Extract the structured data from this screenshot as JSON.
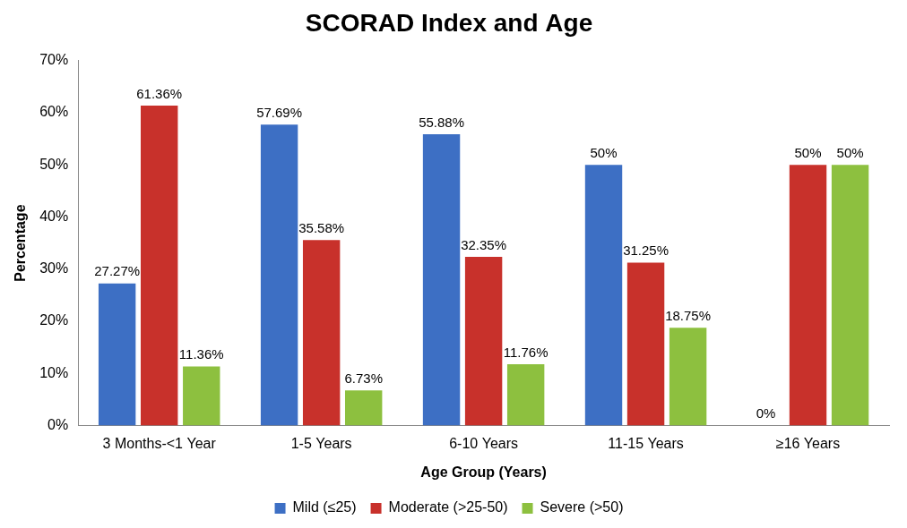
{
  "chart_data": {
    "type": "bar",
    "title": "SCORAD Index and Age",
    "x_label": "Age Group (Years)",
    "y_label": "Percentage",
    "categories": [
      "3 Months-<1 Year",
      "1-5 Years",
      "6-10 Years",
      "11-15 Years",
      "≥16 Years"
    ],
    "series": [
      {
        "name": "Mild (≤25)",
        "color": "#3d6fc4",
        "values": [
          27.27,
          57.69,
          55.88,
          50,
          0
        ],
        "value_labels": [
          "27.27%",
          "57.69%",
          "55.88%",
          "50%",
          "0%"
        ]
      },
      {
        "name": "Moderate (>25-50)",
        "color": "#c8312b",
        "values": [
          61.36,
          35.58,
          32.35,
          31.25,
          50
        ],
        "value_labels": [
          "61.36%",
          "35.58%",
          "32.35%",
          "31.25%",
          "50%"
        ]
      },
      {
        "name": "Severe (>50)",
        "color": "#8dc03f",
        "values": [
          11.36,
          6.73,
          11.76,
          18.75,
          50
        ],
        "value_labels": [
          "11.36%",
          "6.73%",
          "11.76%",
          "18.75%",
          "50%"
        ]
      }
    ],
    "ylim": [
      0,
      70
    ],
    "yticks": [
      {
        "value": 0,
        "label": "0%"
      },
      {
        "value": 10,
        "label": "10%"
      },
      {
        "value": 20,
        "label": "20%"
      },
      {
        "value": 30,
        "label": "30%"
      },
      {
        "value": 40,
        "label": "40%"
      },
      {
        "value": 50,
        "label": "50%"
      },
      {
        "value": 60,
        "label": "60%"
      },
      {
        "value": 70,
        "label": "70%"
      }
    ],
    "grid": false,
    "legend": "bottom",
    "data_labels": true
  }
}
